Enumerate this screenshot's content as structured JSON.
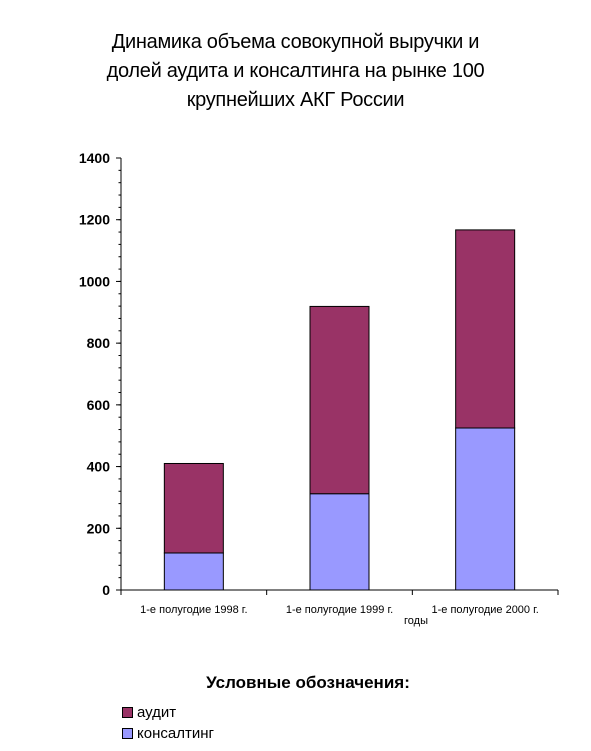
{
  "title_lines": [
    "Динамика объема совокупной выручки и",
    "долей аудита и консалтинга на рынке 100",
    "крупнейших АКГ России"
  ],
  "legend": {
    "title": "Условные обозначения:",
    "items": [
      {
        "label": "аудит",
        "color": "#993366"
      },
      {
        "label": "консалтинг",
        "color": "#9999ff"
      }
    ]
  },
  "chart_data": {
    "type": "bar",
    "stacked": true,
    "title": "Динамика объема совокупной выручки и долей аудита и консалтинга на рынке 100 крупнейших АКГ России",
    "xlabel": "годы",
    "ylabel": "",
    "categories": [
      "1-е полугодие 1998 г.",
      "1-е полугодие 1999 г.",
      "1-е полугодие 2000 г."
    ],
    "series": [
      {
        "name": "консалтинг",
        "color": "#9999ff",
        "values": [
          120,
          312,
          525
        ]
      },
      {
        "name": "аудит",
        "color": "#993366",
        "values": [
          290,
          607,
          642
        ]
      }
    ],
    "ylim": [
      0,
      1400
    ],
    "yticks": [
      "0",
      "200",
      "400",
      "600",
      "800",
      "1000",
      "1200",
      "1400"
    ],
    "grid": false,
    "legend_position": "bottom-left"
  }
}
